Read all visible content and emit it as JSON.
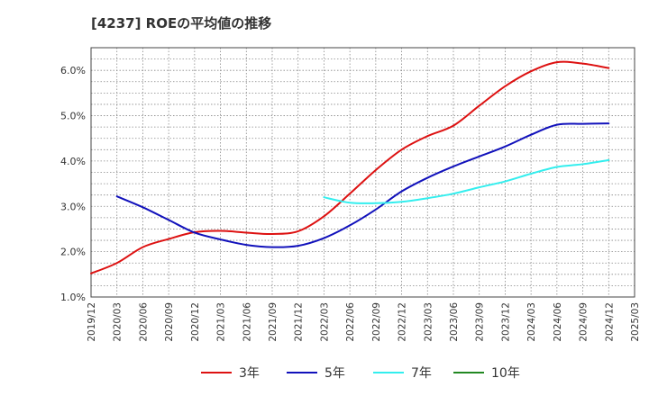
{
  "chart_data": {
    "type": "line",
    "title": "[4237]  ROEの平均値の推移",
    "xlabel": "",
    "ylabel": "",
    "ylim": [
      1.0,
      6.5
    ],
    "yticks": [
      1.0,
      2.0,
      3.0,
      4.0,
      5.0,
      6.0
    ],
    "ytick_labels": [
      "1.0%",
      "2.0%",
      "3.0%",
      "4.0%",
      "5.0%",
      "6.0%"
    ],
    "categories": [
      "2019/12",
      "2020/03",
      "2020/06",
      "2020/09",
      "2020/12",
      "2021/03",
      "2021/06",
      "2021/09",
      "2021/12",
      "2022/03",
      "2022/06",
      "2022/09",
      "2022/12",
      "2023/03",
      "2023/06",
      "2023/09",
      "2023/12",
      "2024/03",
      "2024/06",
      "2024/09",
      "2024/12",
      "2025/03"
    ],
    "grid": true,
    "legend_position": "bottom",
    "series": [
      {
        "name": "3年",
        "color": "#dd1111",
        "values": [
          1.52,
          1.75,
          2.1,
          2.28,
          2.43,
          2.46,
          2.42,
          2.39,
          2.45,
          2.78,
          3.28,
          3.8,
          4.25,
          4.55,
          4.78,
          5.22,
          5.65,
          5.98,
          6.18,
          6.15,
          6.05,
          null
        ]
      },
      {
        "name": "5年",
        "color": "#1111bb",
        "values": [
          null,
          3.22,
          2.98,
          2.7,
          2.42,
          2.27,
          2.15,
          2.1,
          2.13,
          2.3,
          2.58,
          2.93,
          3.33,
          3.63,
          3.88,
          4.1,
          4.32,
          4.58,
          4.8,
          4.82,
          4.83,
          null
        ]
      },
      {
        "name": "7年",
        "color": "#33eeee",
        "values": [
          null,
          null,
          null,
          null,
          null,
          null,
          null,
          null,
          null,
          3.2,
          3.08,
          3.07,
          3.1,
          3.18,
          3.28,
          3.42,
          3.55,
          3.72,
          3.87,
          3.93,
          4.02,
          null
        ]
      },
      {
        "name": "10年",
        "color": "#228822",
        "values": [
          null,
          null,
          null,
          null,
          null,
          null,
          null,
          null,
          null,
          null,
          null,
          null,
          null,
          null,
          null,
          null,
          null,
          null,
          null,
          null,
          null,
          null
        ]
      }
    ]
  }
}
